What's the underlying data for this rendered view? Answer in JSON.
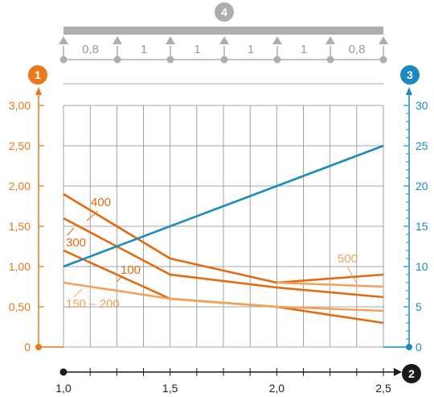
{
  "colors": {
    "left_axis": "#e8791c",
    "right_axis": "#1b8ac2",
    "grid": "#8a8a8a",
    "beam": "#aeaeae",
    "x_axis": "#1a1a1a",
    "orange_dark": "#e36a10",
    "orange_light": "#f2a15a"
  },
  "badges": {
    "left": "1",
    "x": "2",
    "right": "3",
    "beam": "4"
  },
  "beam": {
    "spans": [
      "0,8",
      "1",
      "1",
      "1",
      "1",
      "0,8"
    ]
  },
  "chart_data": {
    "type": "line",
    "x": [
      1.0,
      1.5,
      2.0,
      2.5
    ],
    "x_tick_labels": [
      "1,0",
      "1,5",
      "2,0",
      "2,5"
    ],
    "xlim": [
      1.0,
      2.5
    ],
    "left_axis": {
      "ylim": [
        0,
        3.0
      ],
      "tick_labels": [
        "0",
        "0,50",
        "1,00",
        "1,50",
        "2,00",
        "2,50",
        "3,00"
      ]
    },
    "right_axis": {
      "ylim": [
        0,
        30
      ],
      "tick_labels": [
        "0",
        "5",
        "10",
        "15",
        "20",
        "25",
        "30"
      ]
    },
    "grid": true,
    "series": [
      {
        "name": "400",
        "axis": "left",
        "color": "#e36a10",
        "points": [
          [
            1.0,
            1.9
          ],
          [
            1.5,
            1.1
          ],
          [
            2.0,
            0.8
          ],
          [
            2.5,
            0.9
          ]
        ]
      },
      {
        "name": "300",
        "axis": "left",
        "color": "#e36a10",
        "points": [
          [
            1.0,
            1.6
          ],
          [
            1.5,
            0.9
          ],
          [
            2.0,
            0.74
          ],
          [
            2.5,
            0.62
          ]
        ]
      },
      {
        "name": "100",
        "axis": "left",
        "color": "#e36a10",
        "points": [
          [
            1.0,
            1.2
          ],
          [
            1.5,
            0.6
          ],
          [
            2.0,
            0.5
          ],
          [
            2.5,
            0.3
          ]
        ]
      },
      {
        "name": "150 – 200",
        "axis": "left",
        "color": "#f2a15a",
        "points": [
          [
            1.0,
            0.8
          ],
          [
            1.5,
            0.6
          ],
          [
            2.0,
            0.5
          ],
          [
            2.5,
            0.45
          ]
        ]
      },
      {
        "name": "500",
        "axis": "left",
        "color": "#f2a15a",
        "points": [
          [
            2.0,
            0.8
          ],
          [
            2.5,
            0.75
          ]
        ]
      },
      {
        "name": "",
        "axis": "right",
        "color": "#1b8ac2",
        "points": [
          [
            1.0,
            10
          ],
          [
            2.5,
            25
          ]
        ]
      }
    ]
  }
}
